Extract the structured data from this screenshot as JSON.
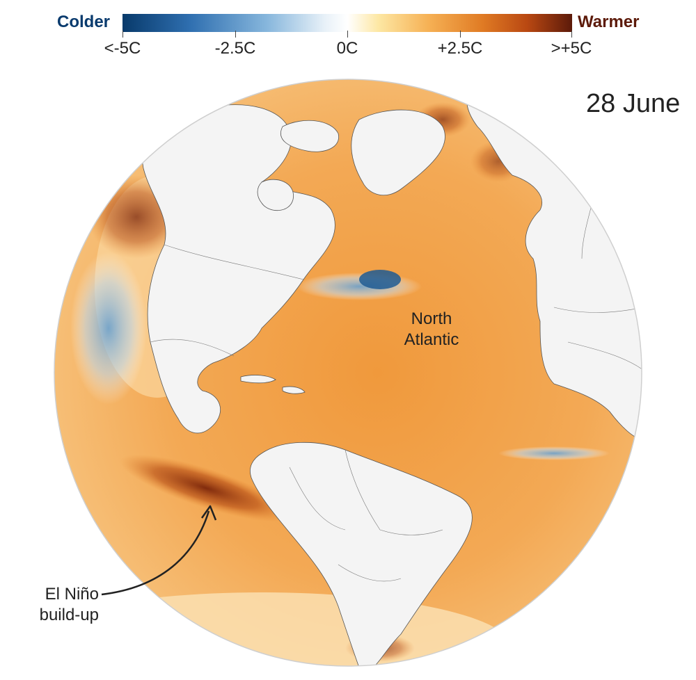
{
  "legend": {
    "cold_label": "Colder",
    "warm_label": "Warmer",
    "cold_color": "#0a3b6e",
    "warm_color": "#5c1a0a",
    "ticks": [
      "<-5C",
      "-2.5C",
      "0C",
      "+2.5C",
      ">+5C"
    ],
    "gradient": [
      "#083a6b",
      "#2f6fb0",
      "#86b6dc",
      "#e8f1f8",
      "#ffffff",
      "#fde7a3",
      "#f6b155",
      "#e07b24",
      "#b94812",
      "#5c1a0a"
    ]
  },
  "date_label": "28 June",
  "annotations": {
    "north_atlantic": [
      "North",
      "Atlantic"
    ],
    "el_nino": [
      "El Niño",
      "build-up"
    ]
  },
  "map": {
    "subject": "sea surface temperature anomaly",
    "ocean_warm_color": "#f2a24a",
    "land_color": "#f4f4f4",
    "border_color": "#555555"
  }
}
